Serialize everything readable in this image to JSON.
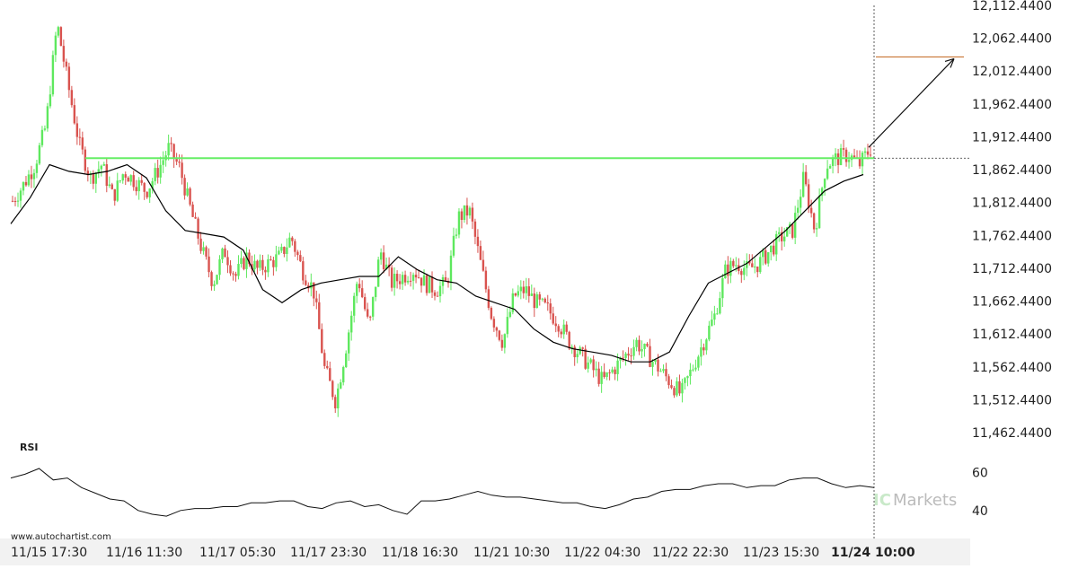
{
  "watermark_site": "www.autochartist.com",
  "brand": {
    "ic_text": "IC",
    "markets_text": "Markets"
  },
  "colors": {
    "up": "#5ee85e",
    "down": "#d9534f",
    "level": "#66ee66",
    "ma": "#000000",
    "target": "#c87533",
    "grid_bg": "#ffffff",
    "xaxis_bg": "#f2f2f2"
  },
  "chart_data": [
    {
      "type": "candlestick",
      "y_ticks": [
        "12,112.4400",
        "12,062.4400",
        "12,012.4400",
        "11,962.4400",
        "11,912.4400",
        "11,862.4400",
        "11,812.4400",
        "11,762.4400",
        "11,712.4400",
        "11,662.4400",
        "11,612.4400",
        "11,562.4400",
        "11,512.4400",
        "11,462.4400"
      ],
      "ylim": [
        11462.44,
        12112.44
      ],
      "x_ticks": [
        {
          "label": "11/15 17:30",
          "bold": false
        },
        {
          "label": "11/16 11:30",
          "bold": false
        },
        {
          "label": "11/17 05:30",
          "bold": false
        },
        {
          "label": "11/17 23:30",
          "bold": false
        },
        {
          "label": "11/18 16:30",
          "bold": false
        },
        {
          "label": "11/21 10:30",
          "bold": false
        },
        {
          "label": "11/22 04:30",
          "bold": false
        },
        {
          "label": "11/22 22:30",
          "bold": false
        },
        {
          "label": "11/23 15:30",
          "bold": false
        },
        {
          "label": "11/24",
          "bold": true
        },
        {
          "label": "10:00",
          "bold": true
        }
      ],
      "resistance_level": 11880,
      "target_level": 12034,
      "price_path": [
        11815,
        11840,
        11870,
        11930,
        12085,
        11990,
        11900,
        11850,
        11870,
        11820,
        11860,
        11845,
        11830,
        11860,
        11895,
        11865,
        11800,
        11740,
        11690,
        11740,
        11700,
        11730,
        11710,
        11720,
        11730,
        11760,
        11710,
        11680,
        11560,
        11510,
        11600,
        11700,
        11620,
        11740,
        11690,
        11700,
        11710,
        11690,
        11680,
        11690,
        11790,
        11800,
        11720,
        11640,
        11600,
        11670,
        11680,
        11660,
        11650,
        11630,
        11600,
        11580,
        11560,
        11540,
        11560,
        11580,
        11600,
        11580,
        11560,
        11540,
        11520,
        11560,
        11600,
        11640,
        11710,
        11720,
        11710,
        11720,
        11740,
        11760,
        11770,
        11850,
        11770,
        11870,
        11880,
        11885,
        11870,
        11895
      ],
      "ma_path": [
        11780,
        11820,
        11870,
        11860,
        11855,
        11860,
        11870,
        11850,
        11800,
        11770,
        11765,
        11760,
        11740,
        11680,
        11660,
        11680,
        11690,
        11695,
        11700,
        11700,
        11730,
        11710,
        11695,
        11690,
        11670,
        11660,
        11650,
        11620,
        11600,
        11590,
        11585,
        11580,
        11570,
        11570,
        11585,
        11640,
        11690,
        11705,
        11720,
        11745,
        11770,
        11800,
        11830,
        11845,
        11855
      ],
      "rsi": {
        "label": "RSI",
        "y_ticks": [
          "60",
          "40"
        ],
        "ylim": [
          30,
          70
        ],
        "values": [
          57,
          59,
          62,
          56,
          57,
          52,
          49,
          46,
          45,
          40,
          38,
          37,
          40,
          41,
          41,
          42,
          42,
          44,
          44,
          45,
          45,
          42,
          41,
          44,
          45,
          42,
          43,
          40,
          38,
          45,
          45,
          46,
          48,
          50,
          48,
          47,
          47,
          46,
          45,
          44,
          44,
          42,
          41,
          43,
          46,
          47,
          50,
          51,
          51,
          53,
          54,
          54,
          52,
          53,
          53,
          56,
          57,
          57,
          54,
          52,
          53,
          52
        ]
      }
    }
  ]
}
